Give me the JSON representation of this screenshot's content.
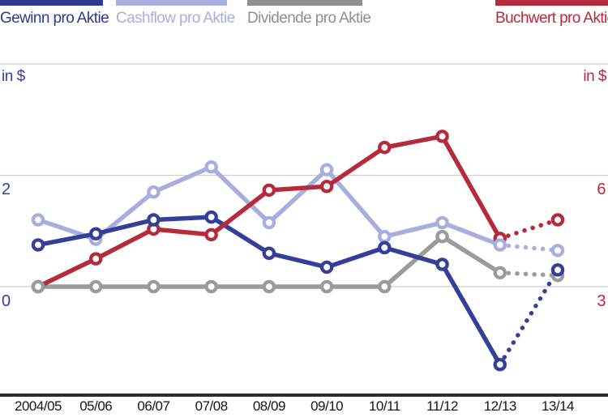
{
  "legend": [
    {
      "label": "Gewinn pro Aktie",
      "color": "#2c3a8f"
    },
    {
      "label": "Cashflow pro Aktie",
      "color": "#a8aede"
    },
    {
      "label": "Dividende pro Aktie",
      "color": "#8f8f8f"
    },
    {
      "label": "Buchwert pro Aktie",
      "color": "#b52b3c"
    }
  ],
  "axes": {
    "left_unit": "in $",
    "right_unit": "in $",
    "left_tick_top": "2",
    "left_tick_bottom": "0",
    "right_tick_top": "6",
    "right_tick_bottom": "3"
  },
  "colors": {
    "gewinn": "#333f99",
    "cashflow": "#a8aede",
    "dividende": "#9b9b9b",
    "buchwert": "#b52b3c",
    "gridline": "#cfcfcf",
    "axis_line": "#2e2e2e"
  },
  "chart_data": {
    "type": "line",
    "categories": [
      "2004/05",
      "05/06",
      "06/07",
      "07/08",
      "08/09",
      "09/10",
      "10/11",
      "11/12",
      "12/13",
      "13/14"
    ],
    "series": [
      {
        "name": "Gewinn pro Aktie",
        "axis": "left",
        "color": "#333f99",
        "marker": "open-circle",
        "last_segment_dotted": true,
        "values": [
          0.75,
          0.95,
          1.2,
          1.25,
          0.6,
          0.35,
          0.7,
          0.4,
          -1.4,
          0.3
        ]
      },
      {
        "name": "Cashflow pro Aktie",
        "axis": "left",
        "color": "#a8aede",
        "marker": "open-circle",
        "last_segment_dotted": true,
        "values": [
          1.2,
          0.85,
          1.7,
          2.15,
          1.15,
          2.1,
          0.9,
          1.15,
          0.75,
          0.65
        ]
      },
      {
        "name": "Dividende pro Aktie",
        "axis": "left",
        "color": "#9b9b9b",
        "marker": "open-circle",
        "last_segment_dotted": true,
        "values": [
          0,
          0,
          0,
          0,
          0,
          0,
          0,
          0.9,
          0.25,
          0.2
        ]
      },
      {
        "name": "Buchwert pro Aktie",
        "axis": "right",
        "color": "#b52b3c",
        "marker": "open-circle",
        "last_segment_dotted": true,
        "values": [
          3.0,
          3.75,
          4.55,
          4.4,
          5.6,
          5.7,
          6.75,
          7.05,
          4.3,
          4.8
        ]
      }
    ],
    "left_axis": {
      "unit": "in $",
      "labeled_ticks": [
        0,
        2
      ],
      "gridlines": [
        0,
        2,
        4
      ]
    },
    "right_axis": {
      "unit": "in $",
      "labeled_ticks": [
        3,
        6
      ],
      "gridlines": [
        3,
        6,
        9
      ]
    },
    "grid": true,
    "legend_position": "top",
    "xlabel": "",
    "ylabel_left": "in $",
    "ylabel_right": "in $"
  }
}
